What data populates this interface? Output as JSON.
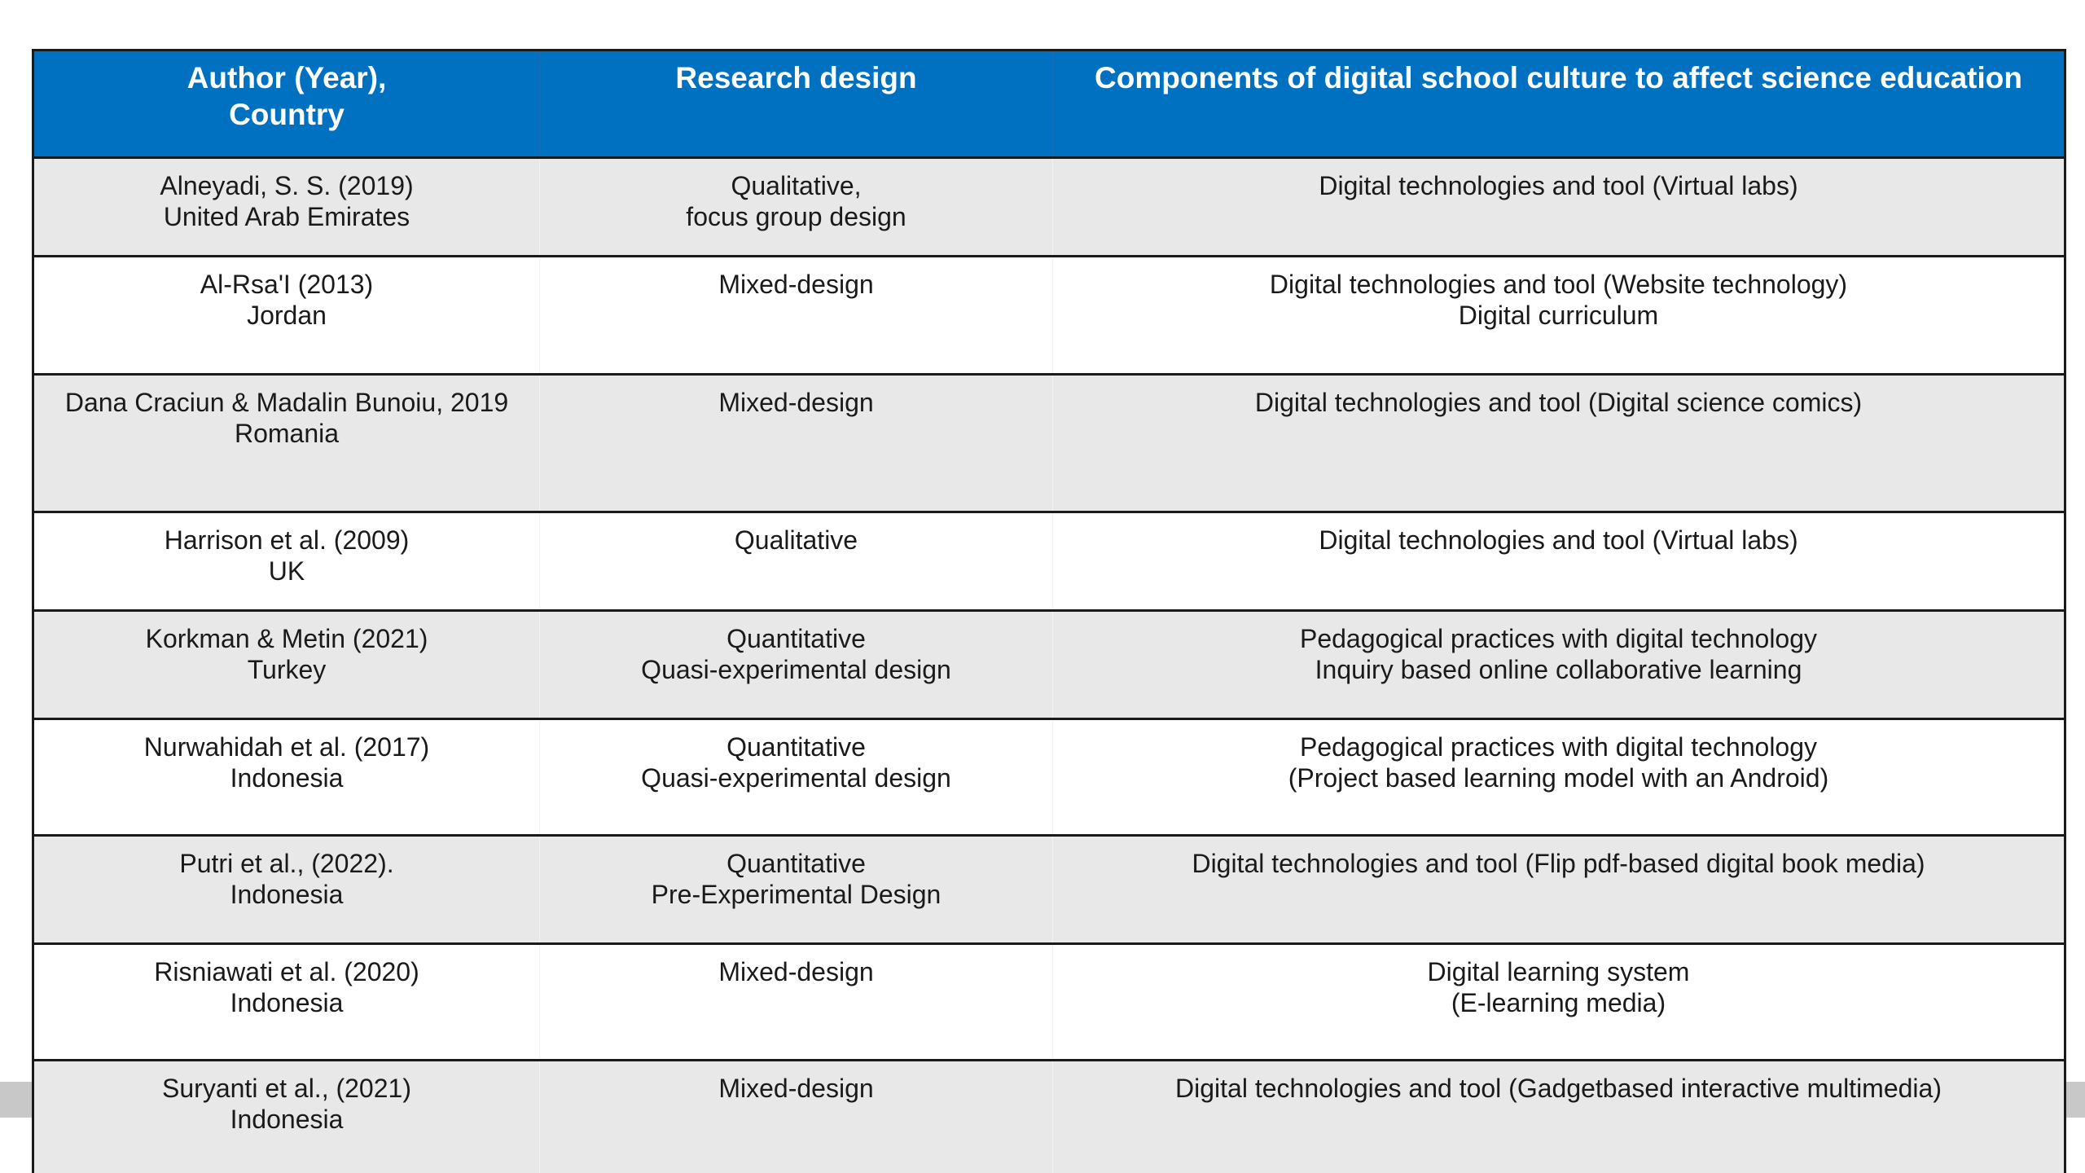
{
  "table": {
    "headers": {
      "author_line1": "Author (Year),",
      "author_line2": "Country",
      "design": "Research design",
      "components": "Components of digital school culture to affect science education"
    },
    "rows": [
      {
        "author": [
          "Alneyadi, S. S. (2019)",
          "United Arab Emirates"
        ],
        "design": [
          "Qualitative,",
          "focus group design"
        ],
        "components": [
          "Digital technologies and tool (Virtual labs)"
        ]
      },
      {
        "author": [
          "Al-Rsa'I (2013)",
          "Jordan"
        ],
        "design": [
          "Mixed-design"
        ],
        "components": [
          "Digital technologies and tool (Website technology)",
          "Digital curriculum"
        ]
      },
      {
        "author": [
          "Dana Craciun & Madalin Bunoiu, 2019",
          "Romania"
        ],
        "design": [
          "Mixed-design"
        ],
        "components": [
          "Digital technologies and tool (Digital science comics)"
        ]
      },
      {
        "author": [
          "Harrison et al. (2009)",
          "UK"
        ],
        "design": [
          "Qualitative"
        ],
        "components": [
          "Digital technologies and tool (Virtual labs)"
        ]
      },
      {
        "author": [
          "Korkman & Metin (2021)",
          "Turkey"
        ],
        "design": [
          "Quantitative",
          "Quasi-experimental design"
        ],
        "components": [
          "Pedagogical practices with digital technology",
          "Inquiry based online collaborative learning"
        ]
      },
      {
        "author": [
          "Nurwahidah et al. (2017)",
          "Indonesia"
        ],
        "design": [
          "Quantitative",
          "Quasi-experimental design"
        ],
        "components": [
          "Pedagogical practices with digital technology",
          "(Project based learning model with an Android)"
        ]
      },
      {
        "author": [
          "Putri et al., (2022).",
          "Indonesia"
        ],
        "design": [
          "Quantitative",
          "Pre-Experimental Design"
        ],
        "components": [
          "Digital technologies and tool (Flip pdf-based digital book media)"
        ]
      },
      {
        "author": [
          "Risniawati et al. (2020)",
          "Indonesia"
        ],
        "design": [
          "Mixed-design"
        ],
        "components": [
          "Digital learning system",
          "(E-learning media)"
        ]
      },
      {
        "author": [
          "Suryanti et al., (2021)",
          "Indonesia"
        ],
        "design": [
          "Mixed-design"
        ],
        "components": [
          "Digital technologies and tool (Gadgetbased interactive multimedia)"
        ]
      }
    ]
  },
  "colors": {
    "header_bg": "#0070c0",
    "shaded_row": "#e8e8e8",
    "plain_row": "#ffffff",
    "border": "#1a1a1a"
  }
}
